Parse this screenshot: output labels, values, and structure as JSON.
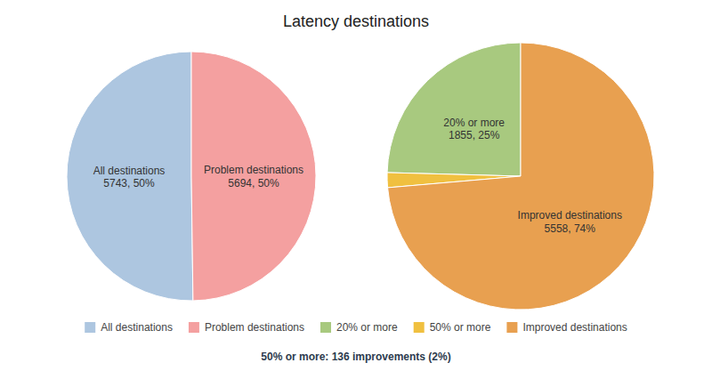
{
  "chart_data": [
    {
      "type": "pie",
      "title": "Latency destinations",
      "categories": [
        "All destinations",
        "Problem destinations"
      ],
      "values": [
        5743,
        5694
      ],
      "value_labels": [
        "5743, 50%",
        "5694, 50%"
      ],
      "colors": [
        "#adc6e0",
        "#f4a0a0"
      ],
      "legend": "bottom"
    },
    {
      "type": "pie",
      "categories": [
        "20% or more",
        "50% or more",
        "Improved destinations"
      ],
      "values": [
        1855,
        136,
        5558
      ],
      "value_labels": [
        "1855, 25%",
        null,
        "5558, 74%"
      ],
      "colors": [
        "#a8c97f",
        "#f0c040",
        "#e8a050"
      ],
      "legend": "bottom",
      "annotations": [
        "50% or more: 136 improvements (2%)"
      ]
    }
  ]
}
